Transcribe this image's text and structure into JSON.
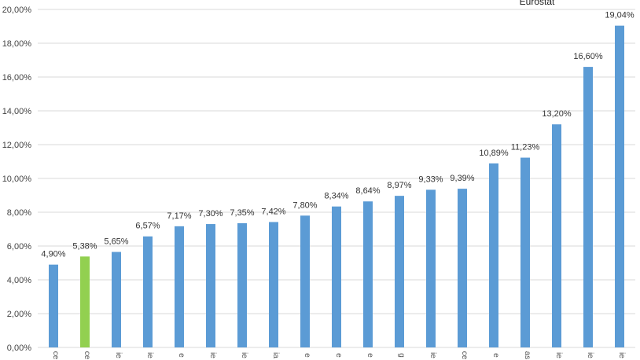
{
  "chart_data": {
    "type": "bar",
    "source_note": "Eurostat",
    "categories": [
      "ce",
      "ce",
      "ie",
      "ie",
      "e",
      "ie",
      "ie",
      "ia",
      "e",
      "e",
      "e",
      "g",
      "ie",
      "ce",
      "e",
      "as",
      "ie",
      "ie",
      "ie"
    ],
    "values": [
      4.9,
      5.38,
      5.65,
      6.57,
      7.17,
      7.3,
      7.35,
      7.42,
      7.8,
      8.34,
      8.64,
      8.97,
      9.33,
      9.39,
      10.89,
      11.23,
      13.2,
      16.6,
      19.04
    ],
    "value_labels": [
      "4,90%",
      "5,38%",
      "5,65%",
      "6,57%",
      "7,17%",
      "7,30%",
      "7,35%",
      "7,42%",
      "7,80%",
      "8,34%",
      "8,64%",
      "8,97%",
      "9,33%",
      "9,39%",
      "10,89%",
      "11,23%",
      "13,20%",
      "16,60%",
      "19,04%"
    ],
    "highlight_index": 1,
    "bar_color": "#5B9BD5",
    "highlight_color": "#92D050",
    "ylim": [
      0,
      20
    ],
    "yticks": [
      0,
      2,
      4,
      6,
      8,
      10,
      12,
      14,
      16,
      18,
      20
    ],
    "ytick_labels": [
      "0,00%",
      "2,00%",
      "4,00%",
      "6,00%",
      "8,00%",
      "10,00%",
      "12,00%",
      "14,00%",
      "16,00%",
      "18,00%",
      "20,00%"
    ],
    "grid": true,
    "gridline_color": "#D9D9D9",
    "legend": false
  }
}
